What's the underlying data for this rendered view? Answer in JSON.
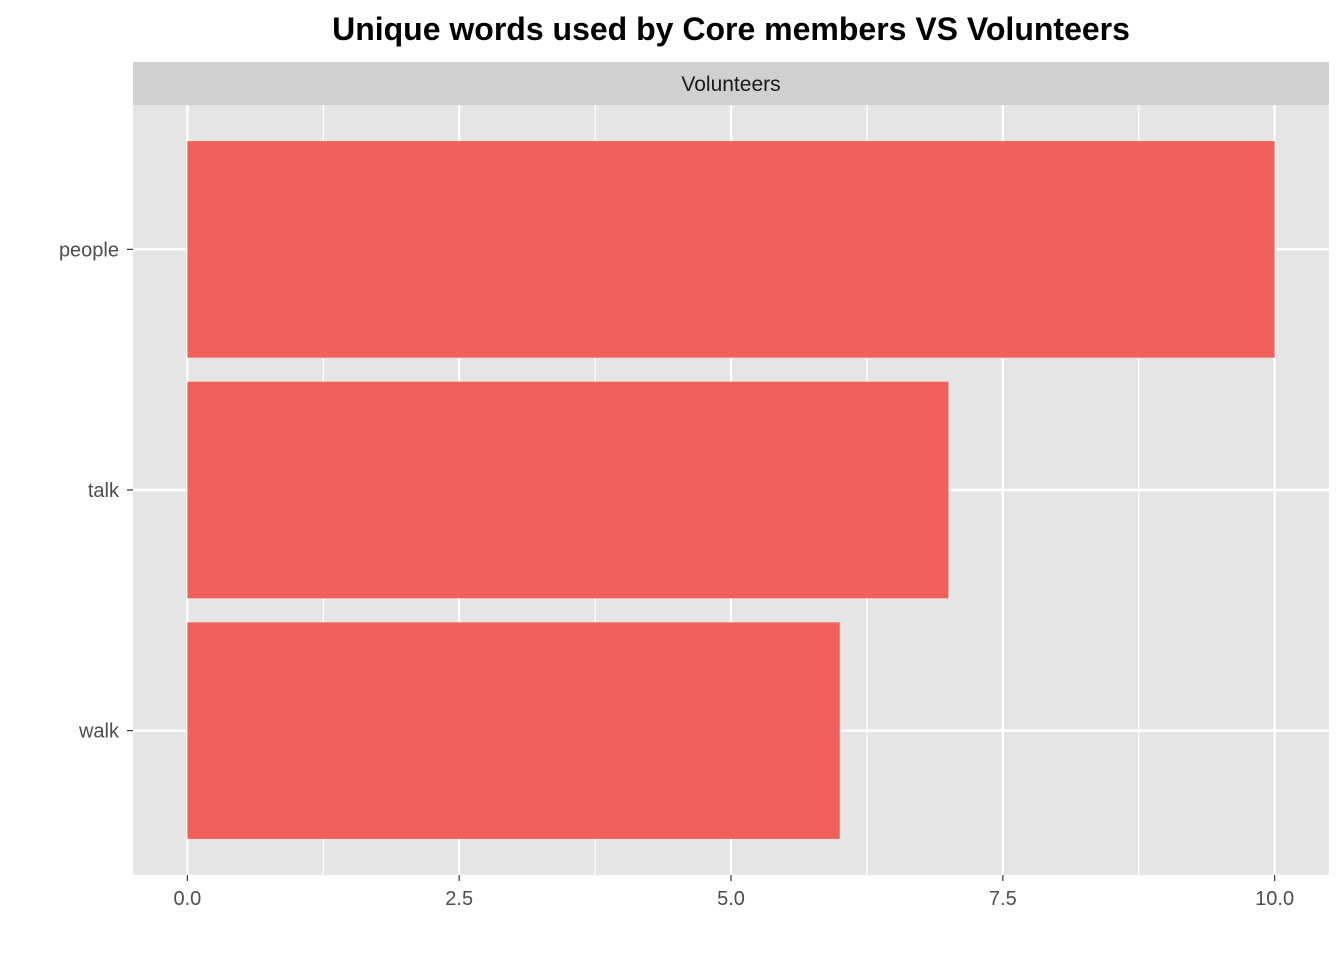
{
  "chart_data": {
    "type": "bar",
    "orientation": "horizontal",
    "title": "Unique words used by Core members VS Volunteers",
    "facet": "Volunteers",
    "categories": [
      "people",
      "talk",
      "walk"
    ],
    "values": [
      10,
      7,
      6
    ],
    "xlabel": "",
    "ylabel": "",
    "xlim": [
      -0.5,
      10.5
    ],
    "xticks": [
      0,
      2.5,
      5,
      7.5,
      10
    ],
    "xtick_labels": [
      "0.0",
      "2.5",
      "5.0",
      "7.5",
      "10.0"
    ],
    "grid": true,
    "legend": "none",
    "colors": {
      "bar": "#F2605B",
      "panel": "#E5E5E5",
      "strip": "#D0D0D0",
      "grid": "#FFFFFF"
    }
  }
}
